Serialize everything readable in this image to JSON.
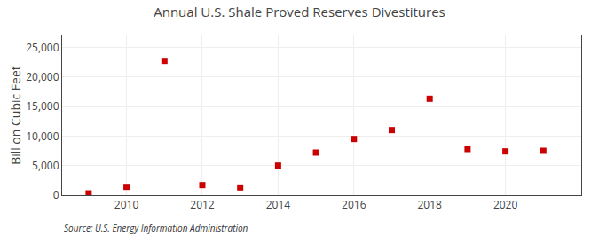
{
  "chart_data": {
    "type": "scatter",
    "title": "Annual U.S. Shale Proved Reserves Divestitures",
    "ylabel": "Billion Cubic Feet",
    "annotations": [
      "Source: U.S. Energy Information Administration"
    ],
    "x": [
      2009,
      2010,
      2011,
      2012,
      2013,
      2014,
      2015,
      2016,
      2017,
      2018,
      2019,
      2020,
      2021
    ],
    "values": [
      300,
      1400,
      22700,
      1700,
      1300,
      5000,
      7200,
      9500,
      11000,
      16300,
      7800,
      7400,
      7500
    ],
    "color": "#cc0000",
    "marker": "square",
    "xlim": [
      2008.3,
      2022.0
    ],
    "xticks": [
      2010,
      2012,
      2014,
      2016,
      2018,
      2020
    ],
    "ylim": [
      0,
      27000
    ],
    "yticks": [
      0,
      {
        "value": 5000,
        "label": "5,000"
      },
      {
        "value": 10000,
        "label": "10,000"
      },
      {
        "value": 15000,
        "label": "15,000"
      },
      {
        "value": 20000,
        "label": "20,000"
      },
      {
        "value": 25000,
        "label": "25,000"
      }
    ],
    "grid": true
  }
}
